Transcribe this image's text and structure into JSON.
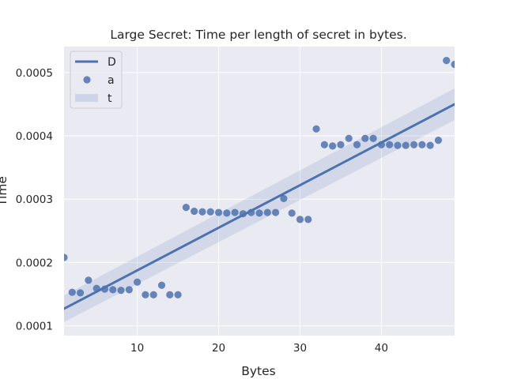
{
  "chart_data": {
    "type": "scatter",
    "title": "Large Secret: Time per length of secret in bytes.",
    "xlabel": "Bytes",
    "ylabel": "Time",
    "xlim": [
      1,
      49
    ],
    "ylim": [
      8.45e-05,
      0.000541
    ],
    "xticks": [
      10,
      20,
      30,
      40
    ],
    "yticks": [
      0.0001,
      0.0002,
      0.0003,
      0.0004,
      0.0005
    ],
    "ytick_labels": [
      "0.0001",
      "0.0002",
      "0.0003",
      "0.0004",
      "0.0005"
    ],
    "grid": true,
    "legend": {
      "position": "top-left",
      "entries": [
        {
          "label": "D",
          "kind": "line"
        },
        {
          "label": "a",
          "kind": "point"
        },
        {
          "label": "t",
          "kind": "band"
        }
      ]
    },
    "series": [
      {
        "kind": "scatter",
        "x": [
          1,
          2,
          3,
          4,
          5,
          6,
          7,
          8,
          9,
          10,
          11,
          12,
          13,
          14,
          15,
          16,
          17,
          18,
          19,
          20,
          21,
          22,
          23,
          24,
          25,
          26,
          27,
          28,
          29,
          30,
          31,
          32,
          33,
          34,
          35,
          36,
          37,
          38,
          39,
          40,
          41,
          42,
          43,
          44,
          45,
          46,
          47,
          48,
          49
        ],
        "values": [
          0.000208,
          0.000153,
          0.000152,
          0.000172,
          0.000159,
          0.000158,
          0.000157,
          0.000156,
          0.000157,
          0.000169,
          0.000149,
          0.000149,
          0.000164,
          0.000149,
          0.000149,
          0.000287,
          0.000281,
          0.00028,
          0.00028,
          0.000279,
          0.000278,
          0.000279,
          0.000277,
          0.000279,
          0.000278,
          0.000279,
          0.000279,
          0.000301,
          0.000278,
          0.000268,
          0.000268,
          0.000411,
          0.000386,
          0.000384,
          0.000386,
          0.000396,
          0.000386,
          0.000396,
          0.000396,
          0.000386,
          0.000386,
          0.000385,
          0.000385,
          0.000386,
          0.000386,
          0.000385,
          0.000393,
          0.000519,
          0.000513
        ]
      },
      {
        "kind": "regression",
        "x": [
          1,
          49
        ],
        "values": [
          0.000127,
          0.00045
        ],
        "ci_upper": [
          0.000148,
          0.000475
        ],
        "ci_lower": [
          0.000106,
          0.000425
        ]
      }
    ],
    "colors": {
      "plot_bg": "#eaeaf2",
      "grid": "#ffffff",
      "point": "#4c72b0",
      "line": "#4c72b0",
      "band": "#4c72b0",
      "text": "#262626"
    }
  }
}
